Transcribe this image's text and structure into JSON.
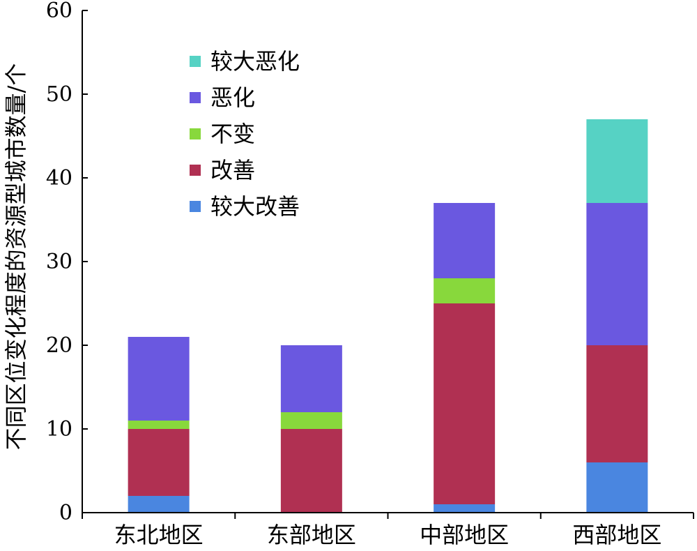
{
  "chart_data": {
    "type": "bar",
    "stacked": true,
    "title": "",
    "xlabel": "",
    "ylabel": "不同区位变化程度的资源型城市数量/个",
    "ylim": [
      0,
      60
    ],
    "yticks": [
      0,
      10,
      20,
      30,
      40,
      50,
      60
    ],
    "grid": false,
    "legend_position": "top-left",
    "categories": [
      "东北地区",
      "东部地区",
      "中部地区",
      "西部地区"
    ],
    "series": [
      {
        "name": "较大改善",
        "color": "#4a86e0",
        "values": [
          2,
          0,
          1,
          6
        ]
      },
      {
        "name": "改善",
        "color": "#b03052",
        "values": [
          8,
          10,
          24,
          14
        ]
      },
      {
        "name": "不变",
        "color": "#88d83c",
        "values": [
          1,
          2,
          3,
          0
        ]
      },
      {
        "name": "恶化",
        "color": "#6a58e0",
        "values": [
          10,
          8,
          9,
          17
        ]
      },
      {
        "name": "较大恶化",
        "color": "#56d2c4",
        "values": [
          0,
          0,
          0,
          10
        ]
      }
    ]
  }
}
